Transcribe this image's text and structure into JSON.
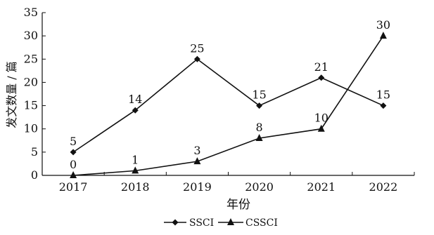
{
  "chart_data": {
    "type": "line",
    "title": "",
    "xlabel": "年份",
    "ylabel": "发文数量 / 篇",
    "categories": [
      "2017",
      "2018",
      "2019",
      "2020",
      "2021",
      "2022"
    ],
    "ylim": [
      0,
      35
    ],
    "yticks": [
      0,
      5,
      10,
      15,
      20,
      25,
      30,
      35
    ],
    "grid": false,
    "legend_position": "bottom-center",
    "series": [
      {
        "name": "SSCI",
        "marker": "diamond",
        "color": "#111111",
        "values": [
          5,
          14,
          25,
          15,
          21,
          15
        ]
      },
      {
        "name": "CSSCI",
        "marker": "triangle",
        "color": "#111111",
        "values": [
          0,
          1,
          3,
          8,
          10,
          30
        ]
      }
    ]
  }
}
